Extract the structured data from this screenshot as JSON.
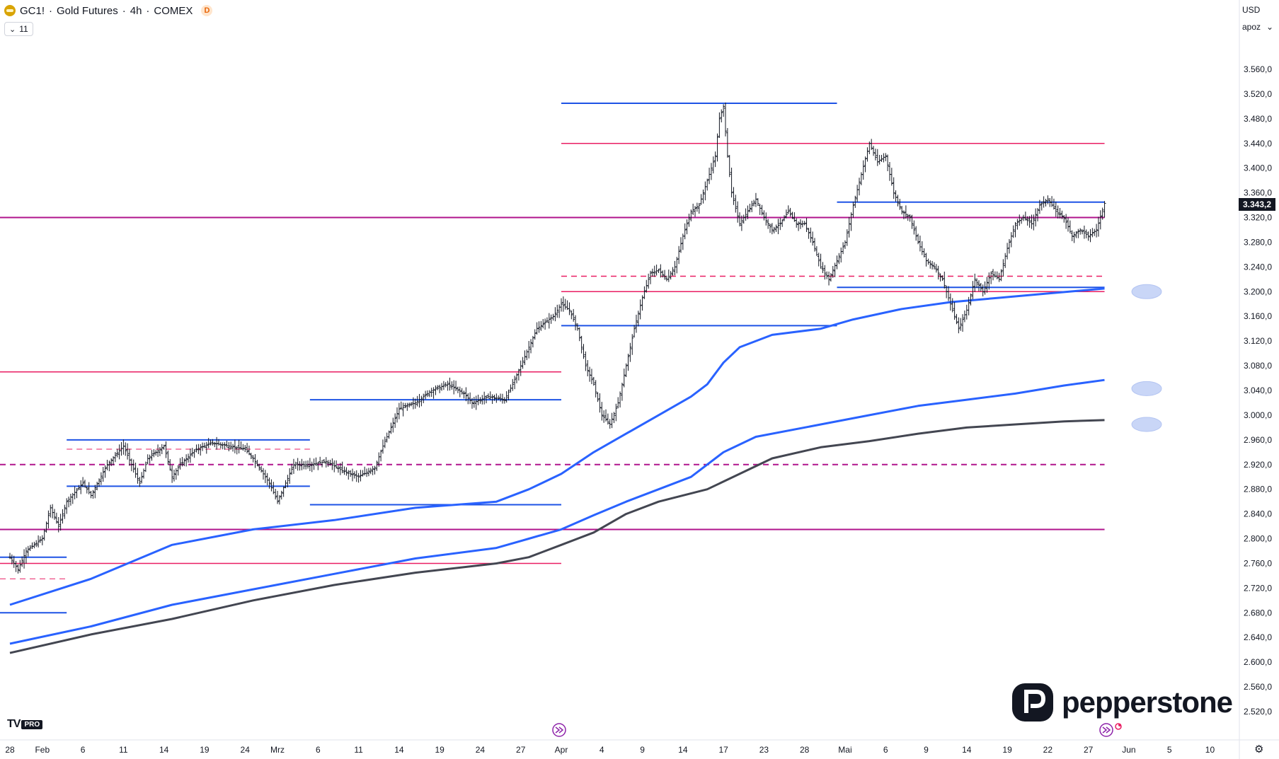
{
  "header": {
    "symbol": "GC1!",
    "separator": "·",
    "name": "Gold Futures",
    "interval": "4h",
    "exchange": "COMEX",
    "badge": "D",
    "indicators_count": "11",
    "currency": "USD",
    "scale_mode": "apoz"
  },
  "branding": {
    "tv_label": "TV",
    "pro_label": "PRO",
    "broker": "pepperstone"
  },
  "colors": {
    "blue_level": "#1e53e5",
    "pink_level": "#e91e63",
    "magenta_level": "#b0148c",
    "ma_blue": "#2962ff",
    "ma_black": "#434651",
    "candle": "#131722",
    "marker": "#c9d6f7"
  },
  "chart_data": {
    "type": "line",
    "y_scale": "linear",
    "ylim": [
      2495,
      3610
    ],
    "y_ticks": [
      "3.560,0",
      "3.520,0",
      "3.480,0",
      "3.440,0",
      "3.400,0",
      "3.360,0",
      "3.320,0",
      "3.280,0",
      "3.240,0",
      "3.200,0",
      "3.160,0",
      "3.120,0",
      "3.080,0",
      "3.040,0",
      "3.000,0",
      "2.960,0",
      "2.920,0",
      "2.880,0",
      "2.840,0",
      "2.800,0",
      "2.760,0",
      "2.720,0",
      "2.680,0",
      "2.640,0",
      "2.600,0",
      "2.560,0",
      "2.520,0"
    ],
    "y_tick_values": [
      3560,
      3520,
      3480,
      3440,
      3400,
      3360,
      3320,
      3280,
      3240,
      3200,
      3160,
      3120,
      3080,
      3040,
      3000,
      2960,
      2920,
      2880,
      2840,
      2800,
      2760,
      2720,
      2680,
      2640,
      2600,
      2560,
      2520
    ],
    "x_range_days": [
      0,
      136
    ],
    "x_ticks": [
      {
        "label": "28",
        "day": 0
      },
      {
        "label": "Feb",
        "day": 4
      },
      {
        "label": "6",
        "day": 9
      },
      {
        "label": "11",
        "day": 14
      },
      {
        "label": "14",
        "day": 19
      },
      {
        "label": "19",
        "day": 24
      },
      {
        "label": "24",
        "day": 29
      },
      {
        "label": "Mrz",
        "day": 33
      },
      {
        "label": "6",
        "day": 38
      },
      {
        "label": "11",
        "day": 43
      },
      {
        "label": "14",
        "day": 48
      },
      {
        "label": "19",
        "day": 53
      },
      {
        "label": "24",
        "day": 58
      },
      {
        "label": "27",
        "day": 63
      },
      {
        "label": "Apr",
        "day": 68
      },
      {
        "label": "4",
        "day": 73
      },
      {
        "label": "9",
        "day": 78
      },
      {
        "label": "14",
        "day": 83
      },
      {
        "label": "17",
        "day": 88
      },
      {
        "label": "23",
        "day": 93
      },
      {
        "label": "28",
        "day": 98
      },
      {
        "label": "Mai",
        "day": 103
      },
      {
        "label": "6",
        "day": 108
      },
      {
        "label": "9",
        "day": 113
      },
      {
        "label": "14",
        "day": 118
      },
      {
        "label": "19",
        "day": 123
      },
      {
        "label": "22",
        "day": 128
      },
      {
        "label": "27",
        "day": 133
      },
      {
        "label": "Jun",
        "day": 138
      },
      {
        "label": "5",
        "day": 143
      },
      {
        "label": "10",
        "day": 148
      }
    ],
    "last_price": 3343.2,
    "last_price_label": "3.343,2",
    "price_path": [
      [
        0,
        2770
      ],
      [
        1,
        2750
      ],
      [
        2,
        2780
      ],
      [
        4,
        2800
      ],
      [
        5,
        2850
      ],
      [
        6,
        2820
      ],
      [
        7,
        2860
      ],
      [
        9,
        2890
      ],
      [
        10,
        2870
      ],
      [
        12,
        2920
      ],
      [
        14,
        2950
      ],
      [
        15,
        2920
      ],
      [
        16,
        2890
      ],
      [
        17,
        2930
      ],
      [
        19,
        2950
      ],
      [
        20,
        2900
      ],
      [
        21,
        2920
      ],
      [
        23,
        2945
      ],
      [
        25,
        2955
      ],
      [
        27,
        2950
      ],
      [
        29,
        2945
      ],
      [
        30,
        2930
      ],
      [
        31,
        2910
      ],
      [
        32,
        2890
      ],
      [
        33,
        2860
      ],
      [
        34,
        2890
      ],
      [
        35,
        2920
      ],
      [
        37,
        2920
      ],
      [
        39,
        2925
      ],
      [
        41,
        2910
      ],
      [
        43,
        2900
      ],
      [
        45,
        2915
      ],
      [
        46,
        2950
      ],
      [
        47,
        2980
      ],
      [
        48,
        3010
      ],
      [
        50,
        3020
      ],
      [
        52,
        3040
      ],
      [
        54,
        3050
      ],
      [
        56,
        3035
      ],
      [
        57,
        3020
      ],
      [
        59,
        3030
      ],
      [
        61,
        3025
      ],
      [
        62,
        3050
      ],
      [
        63,
        3080
      ],
      [
        65,
        3140
      ],
      [
        67,
        3160
      ],
      [
        68,
        3180
      ],
      [
        69,
        3170
      ],
      [
        70,
        3140
      ],
      [
        71,
        3080
      ],
      [
        72,
        3050
      ],
      [
        73,
        3000
      ],
      [
        74,
        2985
      ],
      [
        75,
        3020
      ],
      [
        76,
        3080
      ],
      [
        77,
        3140
      ],
      [
        78,
        3190
      ],
      [
        79,
        3230
      ],
      [
        80,
        3235
      ],
      [
        81,
        3220
      ],
      [
        82,
        3240
      ],
      [
        83,
        3290
      ],
      [
        84,
        3330
      ],
      [
        85,
        3340
      ],
      [
        86,
        3380
      ],
      [
        87,
        3420
      ],
      [
        87.5,
        3480
      ],
      [
        88,
        3500
      ],
      [
        88.5,
        3420
      ],
      [
        89,
        3360
      ],
      [
        90,
        3310
      ],
      [
        91,
        3330
      ],
      [
        92,
        3350
      ],
      [
        93,
        3320
      ],
      [
        94,
        3300
      ],
      [
        95,
        3310
      ],
      [
        96,
        3330
      ],
      [
        97,
        3310
      ],
      [
        98,
        3310
      ],
      [
        99,
        3280
      ],
      [
        100,
        3240
      ],
      [
        101,
        3220
      ],
      [
        102,
        3250
      ],
      [
        103,
        3280
      ],
      [
        104,
        3340
      ],
      [
        105,
        3390
      ],
      [
        106,
        3440
      ],
      [
        107,
        3410
      ],
      [
        108,
        3420
      ],
      [
        109,
        3360
      ],
      [
        110,
        3330
      ],
      [
        111,
        3320
      ],
      [
        112,
        3280
      ],
      [
        113,
        3250
      ],
      [
        114,
        3240
      ],
      [
        115,
        3220
      ],
      [
        116,
        3180
      ],
      [
        117,
        3140
      ],
      [
        118,
        3170
      ],
      [
        119,
        3220
      ],
      [
        120,
        3200
      ],
      [
        121,
        3230
      ],
      [
        122,
        3220
      ],
      [
        123,
        3270
      ],
      [
        124,
        3310
      ],
      [
        125,
        3320
      ],
      [
        126,
        3310
      ],
      [
        127,
        3340
      ],
      [
        128,
        3350
      ],
      [
        129,
        3330
      ],
      [
        130,
        3320
      ],
      [
        131,
        3290
      ],
      [
        132,
        3300
      ],
      [
        133,
        3290
      ],
      [
        134,
        3300
      ],
      [
        135,
        3343
      ]
    ],
    "moving_averages": [
      {
        "color": "#2962ff",
        "width": 3,
        "points": [
          [
            0,
            2693
          ],
          [
            10,
            2735
          ],
          [
            20,
            2790
          ],
          [
            30,
            2815
          ],
          [
            40,
            2830
          ],
          [
            50,
            2850
          ],
          [
            60,
            2860
          ],
          [
            64,
            2880
          ],
          [
            68,
            2905
          ],
          [
            72,
            2940
          ],
          [
            76,
            2970
          ],
          [
            80,
            3000
          ],
          [
            84,
            3030
          ],
          [
            86,
            3050
          ],
          [
            88,
            3085
          ],
          [
            90,
            3110
          ],
          [
            94,
            3130
          ],
          [
            100,
            3140
          ],
          [
            104,
            3155
          ],
          [
            110,
            3172
          ],
          [
            116,
            3183
          ],
          [
            122,
            3190
          ],
          [
            128,
            3197
          ],
          [
            135,
            3205
          ]
        ]
      },
      {
        "color": "#2962ff",
        "width": 3,
        "points": [
          [
            0,
            2630
          ],
          [
            10,
            2658
          ],
          [
            20,
            2693
          ],
          [
            30,
            2718
          ],
          [
            40,
            2743
          ],
          [
            50,
            2768
          ],
          [
            60,
            2785
          ],
          [
            64,
            2800
          ],
          [
            68,
            2815
          ],
          [
            72,
            2838
          ],
          [
            76,
            2860
          ],
          [
            80,
            2880
          ],
          [
            84,
            2900
          ],
          [
            88,
            2940
          ],
          [
            92,
            2965
          ],
          [
            100,
            2985
          ],
          [
            106,
            3000
          ],
          [
            112,
            3015
          ],
          [
            118,
            3025
          ],
          [
            124,
            3035
          ],
          [
            130,
            3048
          ],
          [
            135,
            3057
          ]
        ]
      },
      {
        "color": "#434651",
        "width": 3,
        "points": [
          [
            0,
            2615
          ],
          [
            10,
            2645
          ],
          [
            20,
            2670
          ],
          [
            30,
            2700
          ],
          [
            40,
            2725
          ],
          [
            50,
            2745
          ],
          [
            60,
            2760
          ],
          [
            64,
            2770
          ],
          [
            68,
            2790
          ],
          [
            72,
            2810
          ],
          [
            76,
            2840
          ],
          [
            80,
            2860
          ],
          [
            86,
            2880
          ],
          [
            90,
            2905
          ],
          [
            94,
            2930
          ],
          [
            100,
            2948
          ],
          [
            106,
            2958
          ],
          [
            112,
            2970
          ],
          [
            118,
            2980
          ],
          [
            124,
            2985
          ],
          [
            130,
            2990
          ],
          [
            135,
            2992
          ]
        ]
      }
    ],
    "horizontal_levels": [
      {
        "price": 3505,
        "from": 68,
        "to": 102,
        "color": "#1e53e5",
        "dash": false,
        "width": 2
      },
      {
        "price": 3440,
        "from": 68,
        "to": 135,
        "color": "#e91e63",
        "dash": false,
        "width": 1.5
      },
      {
        "price": 3345,
        "from": 102,
        "to": 135,
        "color": "#1e53e5",
        "dash": false,
        "width": 2
      },
      {
        "price": 3320,
        "from": 0,
        "to": 135,
        "color": "#b0148c",
        "dash": false,
        "width": 2
      },
      {
        "price": 3225,
        "from": 68,
        "to": 135,
        "color": "#e91e63",
        "dash": true,
        "width": 1.5
      },
      {
        "price": 3207,
        "from": 102,
        "to": 135,
        "color": "#1e53e5",
        "dash": false,
        "width": 2
      },
      {
        "price": 3200,
        "from": 68,
        "to": 135,
        "color": "#e91e63",
        "dash": false,
        "width": 1.5
      },
      {
        "price": 3145,
        "from": 68,
        "to": 102,
        "color": "#1e53e5",
        "dash": false,
        "width": 2
      },
      {
        "price": 3070,
        "from": 0,
        "to": 68,
        "color": "#e91e63",
        "dash": false,
        "width": 1.5
      },
      {
        "price": 3025,
        "from": 37,
        "to": 68,
        "color": "#1e53e5",
        "dash": false,
        "width": 2
      },
      {
        "price": 2960,
        "from": 7,
        "to": 37,
        "color": "#1e53e5",
        "dash": false,
        "width": 2
      },
      {
        "price": 2945,
        "from": 7,
        "to": 37,
        "color": "#e91e63",
        "dash": true,
        "width": 1
      },
      {
        "price": 2920,
        "from": 0,
        "to": 135,
        "color": "#b0148c",
        "dash": true,
        "width": 2
      },
      {
        "price": 2885,
        "from": 7,
        "to": 37,
        "color": "#1e53e5",
        "dash": false,
        "width": 2
      },
      {
        "price": 2855,
        "from": 37,
        "to": 68,
        "color": "#1e53e5",
        "dash": false,
        "width": 2
      },
      {
        "price": 2815,
        "from": 0,
        "to": 135,
        "color": "#b0148c",
        "dash": false,
        "width": 2
      },
      {
        "price": 2770,
        "from": 0,
        "to": 7,
        "color": "#1e53e5",
        "dash": false,
        "width": 2
      },
      {
        "price": 2760,
        "from": 0,
        "to": 68,
        "color": "#e91e63",
        "dash": false,
        "width": 1.5
      },
      {
        "price": 2735,
        "from": 0,
        "to": 7,
        "color": "#e91e63",
        "dash": true,
        "width": 1
      },
      {
        "price": 2680,
        "from": 0,
        "to": 7,
        "color": "#1e53e5",
        "dash": false,
        "width": 2
      }
    ],
    "markers": [
      {
        "price": 3200,
        "day": 139
      },
      {
        "price": 3043,
        "day": 139
      },
      {
        "price": 2985,
        "day": 139
      }
    ]
  }
}
